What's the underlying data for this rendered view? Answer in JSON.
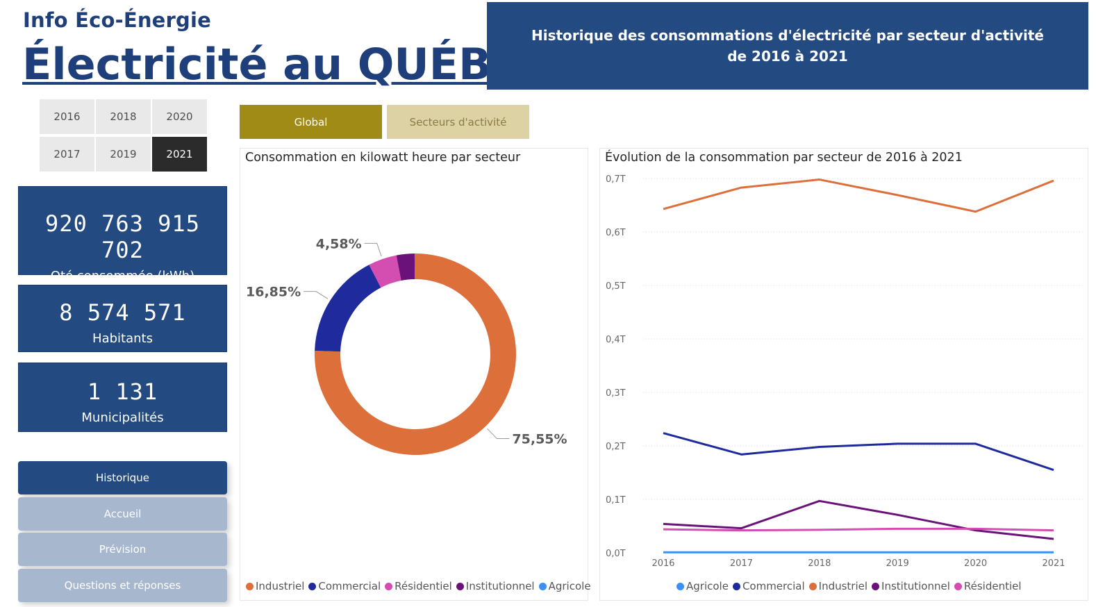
{
  "brand": {
    "subtitle": "Info Éco-Énergie",
    "title": "Électricité au QUÉBEC"
  },
  "header": {
    "line1": "Historique des consommations d'électricité par secteur d'activité",
    "line2": "de 2016 à 2021"
  },
  "years": [
    {
      "label": "2016",
      "active": false
    },
    {
      "label": "2018",
      "active": false
    },
    {
      "label": "2020",
      "active": false
    },
    {
      "label": "2017",
      "active": false
    },
    {
      "label": "2019",
      "active": false
    },
    {
      "label": "2021",
      "active": true
    }
  ],
  "kpis": {
    "consumption": {
      "value": "920 763 915 702",
      "label": "Qté consommée (kWh)"
    },
    "population": {
      "value": "8 574 571",
      "label": "Habitants"
    },
    "municipalities": {
      "value": "1 131",
      "label": "Municipalités"
    }
  },
  "nav": {
    "historique": "Historique",
    "accueil": "Accueil",
    "prevision": "Prévision",
    "faq": "Questions et réponses"
  },
  "tabs": {
    "global": "Global",
    "secteurs": "Secteurs d'activité"
  },
  "donut": {
    "title": "Consommation en kilowatt heure par secteur",
    "legend": [
      {
        "name": "Industriel",
        "color": "#dd6f3b"
      },
      {
        "name": "Commercial",
        "color": "#1f2a9c"
      },
      {
        "name": "Résidentiel",
        "color": "#d44db0"
      },
      {
        "name": "Institutionnel",
        "color": "#6b127a"
      },
      {
        "name": "Agricole",
        "color": "#3d8ff0"
      }
    ],
    "labels": {
      "industriel": "75,55%",
      "commercial": "16,85%",
      "residentiel": "4,58%"
    }
  },
  "line": {
    "title": "Évolution de la consommation par secteur de 2016 à 2021",
    "legend": [
      {
        "name": "Agricole",
        "color": "#3d8ff0"
      },
      {
        "name": "Commercial",
        "color": "#1f2a9c"
      },
      {
        "name": "Industriel",
        "color": "#dd6f3b"
      },
      {
        "name": "Institutionnel",
        "color": "#6b127a"
      },
      {
        "name": "Résidentiel",
        "color": "#d44db0"
      }
    ]
  },
  "chart_data": [
    {
      "type": "pie",
      "title": "Consommation en kilowatt heure par secteur",
      "categories": [
        "Industriel",
        "Commercial",
        "Résidentiel",
        "Institutionnel",
        "Agricole"
      ],
      "values": [
        75.55,
        16.85,
        4.58,
        2.9,
        0.12
      ],
      "colors": [
        "#dd6f3b",
        "#1f2a9c",
        "#d44db0",
        "#6b127a",
        "#3d8ff0"
      ],
      "data_labels": [
        "75,55%",
        "16,85%",
        "4,58%",
        "",
        ""
      ],
      "legend_position": "bottom"
    },
    {
      "type": "line",
      "title": "Évolution de la consommation par secteur de 2016 à 2021",
      "x": [
        "2016",
        "2017",
        "2018",
        "2019",
        "2020",
        "2021"
      ],
      "yticks": [
        "0,0T",
        "0,1T",
        "0,2T",
        "0,3T",
        "0,4T",
        "0,5T",
        "0,6T",
        "0,7T"
      ],
      "ylim": [
        0,
        0.7
      ],
      "grid": true,
      "legend_position": "bottom",
      "series": [
        {
          "name": "Agricole",
          "color": "#3d8ff0",
          "values": [
            0.001,
            0.001,
            0.001,
            0.001,
            0.001,
            0.001
          ]
        },
        {
          "name": "Commercial",
          "color": "#1f2a9c",
          "values": [
            0.224,
            0.184,
            0.198,
            0.204,
            0.204,
            0.155
          ]
        },
        {
          "name": "Industriel",
          "color": "#dd6f3b",
          "values": [
            0.643,
            0.683,
            0.698,
            0.669,
            0.638,
            0.696
          ]
        },
        {
          "name": "Institutionnel",
          "color": "#6b127a",
          "values": [
            0.054,
            0.046,
            0.097,
            0.071,
            0.042,
            0.026
          ]
        },
        {
          "name": "Résidentiel",
          "color": "#d44db0",
          "values": [
            0.044,
            0.042,
            0.043,
            0.045,
            0.045,
            0.042
          ]
        }
      ]
    }
  ]
}
